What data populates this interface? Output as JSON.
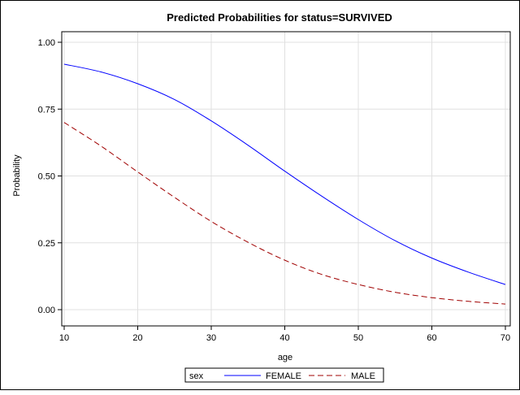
{
  "chart_data": {
    "type": "line",
    "title": "Predicted Probabilities for status=SURVIVED",
    "xlabel": "age",
    "ylabel": "Probability",
    "xlim": [
      10,
      70
    ],
    "ylim": [
      0,
      1
    ],
    "x_ticks": [
      "10",
      "20",
      "30",
      "40",
      "50",
      "60",
      "70"
    ],
    "y_ticks": [
      "0.00",
      "0.25",
      "0.50",
      "0.75",
      "1.00"
    ],
    "grid": true,
    "legend_position": "bottom",
    "legend_title": "sex",
    "x": [
      10,
      15,
      20,
      25,
      30,
      35,
      40,
      45,
      50,
      55,
      60,
      65,
      70
    ],
    "series": [
      {
        "name": "FEMALE",
        "color": "#0000ff",
        "line_style": "solid",
        "values": [
          0.918,
          0.889,
          0.845,
          0.786,
          0.706,
          0.615,
          0.518,
          0.425,
          0.337,
          0.258,
          0.193,
          0.14,
          0.094
        ]
      },
      {
        "name": "MALE",
        "color": "#a00000",
        "line_style": "dashed",
        "values": [
          0.7,
          0.612,
          0.515,
          0.42,
          0.33,
          0.252,
          0.185,
          0.132,
          0.094,
          0.065,
          0.045,
          0.031,
          0.021
        ]
      }
    ]
  }
}
